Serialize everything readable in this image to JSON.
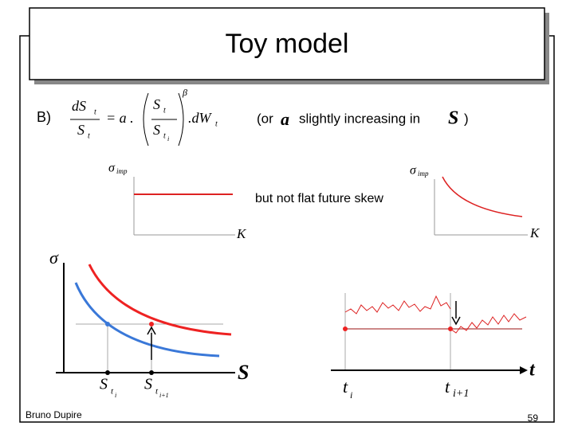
{
  "title": "Toy model",
  "formula": {
    "label": "B)",
    "num_d": "dS",
    "num_sub": "t",
    "den": "S",
    "den_sub": "t",
    "eq": "= a .",
    "frac_num": "S",
    "frac_num_sub": "t",
    "frac_den": "S",
    "frac_den_sub": "t",
    "frac_den_subsub": "i",
    "exp": "β",
    "dw": ".dW",
    "dw_sub": "t"
  },
  "note": {
    "open": "(or",
    "alpha": "a",
    "text": "slightly increasing in",
    "s": "S",
    "close": ")"
  },
  "skew_note": "but not flat future skew",
  "left_small": {
    "y_label": "σ",
    "y_sub": "imp",
    "x_label": "K"
  },
  "right_small": {
    "y_label": "σ",
    "y_sub": "imp",
    "x_label": "K"
  },
  "left_big": {
    "y_label": "σ",
    "x_label": "S",
    "tick1": "S",
    "tick1_sub": "t",
    "tick1_subsub": "i",
    "tick2": "S",
    "tick2_sub": "t",
    "tick2_subsub": "i+1"
  },
  "right_big": {
    "x_label": "t",
    "tick1": "t",
    "tick1_sub": "i",
    "tick2": "t",
    "tick2_sub": "i+1"
  },
  "footer": {
    "author": "Bruno Dupire",
    "page": "59"
  }
}
